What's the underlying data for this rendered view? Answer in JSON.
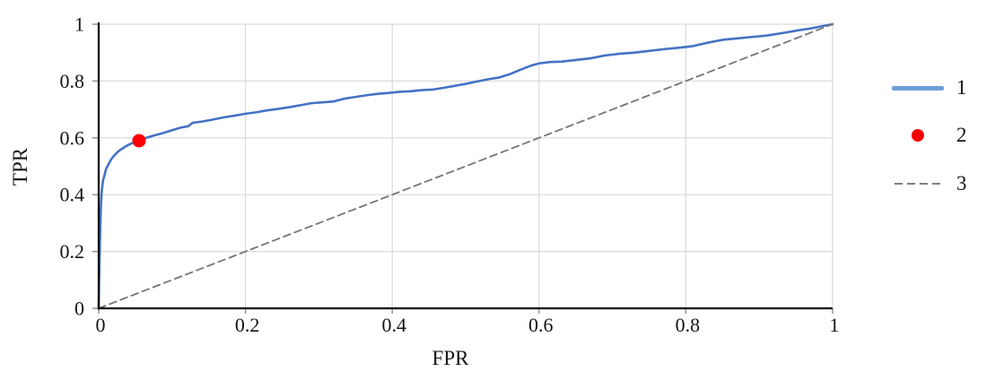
{
  "chart_data": {
    "type": "line",
    "title": "",
    "xlabel": "FPR",
    "ylabel": "TPR",
    "xlim": [
      0,
      1
    ],
    "ylim": [
      0,
      1
    ],
    "grid": true,
    "legend_position": "right-outside",
    "x_ticks": [
      0,
      0.2,
      0.4,
      0.6,
      0.8,
      1
    ],
    "y_ticks": [
      0,
      0.2,
      0.4,
      0.6,
      0.8,
      1
    ],
    "x_tick_labels": [
      "0",
      "0.2",
      "0.4",
      "0.6",
      "0.8",
      "1"
    ],
    "y_tick_labels": [
      "0",
      "0.2",
      "0.4",
      "0.6",
      "0.8",
      "1"
    ],
    "colors": {
      "grid": "#dadada",
      "axis": "#000000",
      "tick": "#8c8c8c",
      "text": "#141414",
      "background": "#ffffff"
    },
    "series": [
      {
        "name": "1",
        "role": "roc-curve",
        "kind": "line",
        "color": "#4472c4",
        "width": 2.6,
        "points": [
          [
            0,
            0
          ],
          [
            0.0005,
            0.08
          ],
          [
            0.001,
            0.15
          ],
          [
            0.002,
            0.27
          ],
          [
            0.003,
            0.36
          ],
          [
            0.004,
            0.41
          ],
          [
            0.006,
            0.45
          ],
          [
            0.008,
            0.47
          ],
          [
            0.01,
            0.49
          ],
          [
            0.012,
            0.5
          ],
          [
            0.015,
            0.515
          ],
          [
            0.018,
            0.528
          ],
          [
            0.022,
            0.54
          ],
          [
            0.027,
            0.553
          ],
          [
            0.032,
            0.562
          ],
          [
            0.038,
            0.572
          ],
          [
            0.045,
            0.581
          ],
          [
            0.055,
            0.59
          ],
          [
            0.065,
            0.6
          ],
          [
            0.075,
            0.608
          ],
          [
            0.088,
            0.617
          ],
          [
            0.1,
            0.627
          ],
          [
            0.112,
            0.636
          ],
          [
            0.122,
            0.641
          ],
          [
            0.128,
            0.653
          ],
          [
            0.14,
            0.657
          ],
          [
            0.155,
            0.664
          ],
          [
            0.17,
            0.672
          ],
          [
            0.185,
            0.678
          ],
          [
            0.2,
            0.685
          ],
          [
            0.215,
            0.69
          ],
          [
            0.23,
            0.697
          ],
          [
            0.245,
            0.702
          ],
          [
            0.26,
            0.708
          ],
          [
            0.275,
            0.715
          ],
          [
            0.29,
            0.722
          ],
          [
            0.305,
            0.725
          ],
          [
            0.32,
            0.728
          ],
          [
            0.335,
            0.738
          ],
          [
            0.35,
            0.744
          ],
          [
            0.365,
            0.75
          ],
          [
            0.38,
            0.755
          ],
          [
            0.395,
            0.758
          ],
          [
            0.41,
            0.762
          ],
          [
            0.425,
            0.764
          ],
          [
            0.44,
            0.768
          ],
          [
            0.455,
            0.77
          ],
          [
            0.47,
            0.776
          ],
          [
            0.485,
            0.783
          ],
          [
            0.5,
            0.79
          ],
          [
            0.515,
            0.798
          ],
          [
            0.53,
            0.806
          ],
          [
            0.545,
            0.812
          ],
          [
            0.56,
            0.824
          ],
          [
            0.575,
            0.84
          ],
          [
            0.59,
            0.855
          ],
          [
            0.6,
            0.862
          ],
          [
            0.615,
            0.867
          ],
          [
            0.63,
            0.868
          ],
          [
            0.65,
            0.874
          ],
          [
            0.67,
            0.88
          ],
          [
            0.69,
            0.89
          ],
          [
            0.71,
            0.896
          ],
          [
            0.73,
            0.9
          ],
          [
            0.75,
            0.906
          ],
          [
            0.77,
            0.912
          ],
          [
            0.79,
            0.917
          ],
          [
            0.81,
            0.923
          ],
          [
            0.83,
            0.935
          ],
          [
            0.85,
            0.945
          ],
          [
            0.87,
            0.95
          ],
          [
            0.89,
            0.955
          ],
          [
            0.91,
            0.96
          ],
          [
            0.93,
            0.968
          ],
          [
            0.95,
            0.977
          ],
          [
            0.97,
            0.985
          ],
          [
            1.0,
            1.0
          ]
        ]
      },
      {
        "name": "2",
        "role": "operating-point-marker",
        "kind": "scatter",
        "color": "#fa0000",
        "radius": 7.5,
        "points": [
          [
            0.055,
            0.59
          ]
        ]
      },
      {
        "name": "3",
        "role": "chance-diagonal",
        "kind": "line",
        "style": "dashed",
        "dash": "8 5",
        "color": "#757575",
        "width": 1.8,
        "points": [
          [
            0,
            0
          ],
          [
            1,
            1
          ]
        ]
      }
    ]
  },
  "legend": {
    "items": [
      {
        "label": "1",
        "swatch": "line",
        "color": "#6d9ed6"
      },
      {
        "label": "2",
        "swatch": "dot",
        "color": "#fa0000"
      },
      {
        "label": "3",
        "swatch": "dash",
        "color": "#7f7f7f"
      }
    ]
  }
}
